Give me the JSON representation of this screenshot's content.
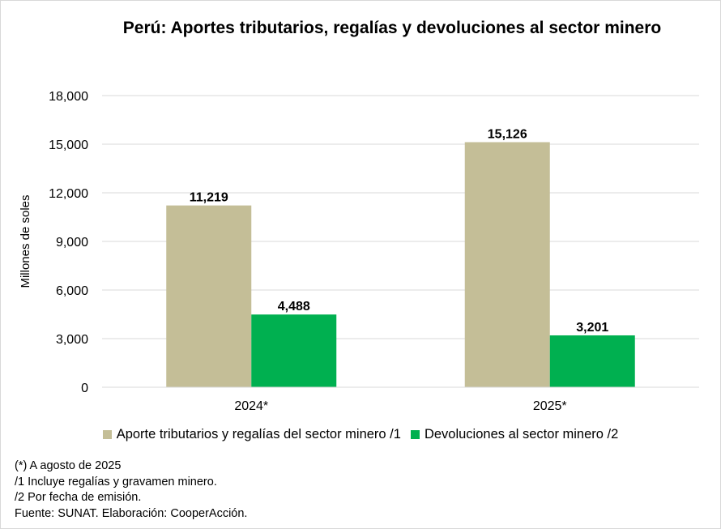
{
  "chart_data": {
    "type": "bar",
    "title": "Perú: Aportes tributarios, regalías y devoluciones al sector minero",
    "xlabel": "",
    "ylabel": "Millones de soles",
    "categories": [
      "2024*",
      "2025*"
    ],
    "series": [
      {
        "name": "Aporte tributarios y regalías del sector minero /1",
        "values": [
          11219,
          15126
        ],
        "color": "#c4be97"
      },
      {
        "name": "Devoluciones al sector minero /2",
        "values": [
          4488,
          3201
        ],
        "color": "#00b050"
      }
    ],
    "data_labels": [
      [
        "11,219",
        "15,126"
      ],
      [
        "4,488",
        "3,201"
      ]
    ],
    "ylim": [
      0,
      18000
    ],
    "yticks": [
      0,
      3000,
      6000,
      9000,
      12000,
      15000,
      18000
    ],
    "ytick_labels": [
      "0",
      "3,000",
      "6,000",
      "9,000",
      "12,000",
      "15,000",
      "18,000"
    ],
    "grid": true,
    "legend_position": "bottom",
    "gridline_color": "#d9d9d9"
  },
  "notes": [
    "(*) A agosto de 2025",
    "/1 Incluye regalías y gravamen minero.",
    "/2 Por fecha de emisión.",
    "Fuente: SUNAT. Elaboración: CooperAcción."
  ]
}
